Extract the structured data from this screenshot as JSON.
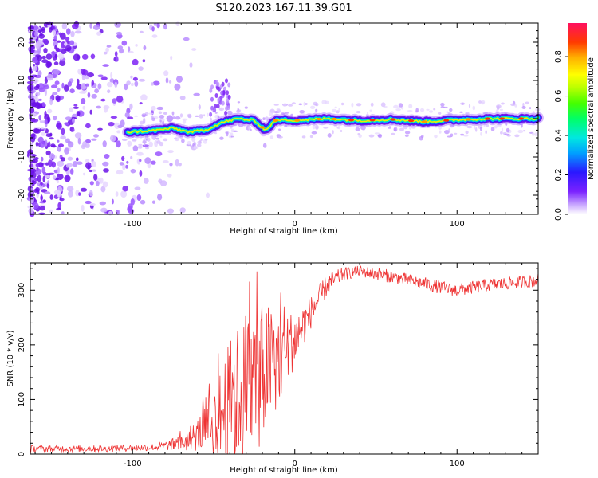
{
  "title": "S120.2023.167.11.39.G01",
  "chart_data": [
    {
      "type": "heatmap",
      "xlabel": "Height of straight line (km)",
      "ylabel": "Frequency (Hz)",
      "xlim": [
        -163,
        150
      ],
      "ylim": [
        -25,
        25
      ],
      "x_ticks": [
        -100,
        0,
        100
      ],
      "y_ticks": [
        -20,
        -10,
        0,
        10,
        20
      ],
      "colorbar": {
        "label": "Normalized spectral amplitude",
        "ticks": [
          "0.0",
          "0.2",
          "0.4",
          "0.6",
          "0.8"
        ],
        "range": [
          0,
          0.97
        ]
      },
      "signal_track": {
        "description_points_x": [
          -103,
          -90,
          -75,
          -65,
          -55,
          -45,
          -35,
          -25,
          -18,
          -12,
          -5,
          0,
          20,
          40,
          60,
          80,
          100,
          120,
          150
        ],
        "frequency_hz": [
          -3.5,
          -3.2,
          -2.5,
          -3.5,
          -3.0,
          -1.0,
          0.0,
          -0.5,
          -3.0,
          -0.5,
          -0.3,
          -0.5,
          0.0,
          -0.5,
          -0.2,
          -0.8,
          -0.3,
          0.0,
          0.0
        ]
      },
      "noise_region_x": [
        -163,
        -80
      ]
    },
    {
      "type": "line",
      "xlabel": "Height of straight line (km)",
      "ylabel": "SNR (10 * v/v)",
      "xlim": [
        -163,
        150
      ],
      "ylim": [
        0,
        350
      ],
      "x_ticks": [
        -100,
        0,
        100
      ],
      "y_ticks": [
        0,
        100,
        200,
        300
      ],
      "series": [
        {
          "color": "#ee3333",
          "x": [
            -163,
            -120,
            -90,
            -80,
            -70,
            -60,
            -50,
            -40,
            -30,
            -20,
            -10,
            0,
            10,
            20,
            30,
            40,
            50,
            60,
            70,
            80,
            90,
            100,
            110,
            120,
            130,
            140,
            150
          ],
          "y": [
            10,
            10,
            12,
            15,
            20,
            35,
            60,
            90,
            120,
            150,
            180,
            210,
            260,
            310,
            330,
            335,
            330,
            325,
            318,
            312,
            305,
            300,
            305,
            310,
            312,
            315,
            318
          ],
          "spread": [
            6,
            6,
            6,
            8,
            15,
            30,
            60,
            120,
            150,
            130,
            90,
            50,
            30,
            20,
            12,
            10,
            12,
            12,
            12,
            12,
            12,
            12,
            12,
            12,
            12,
            12,
            12
          ]
        }
      ]
    }
  ]
}
